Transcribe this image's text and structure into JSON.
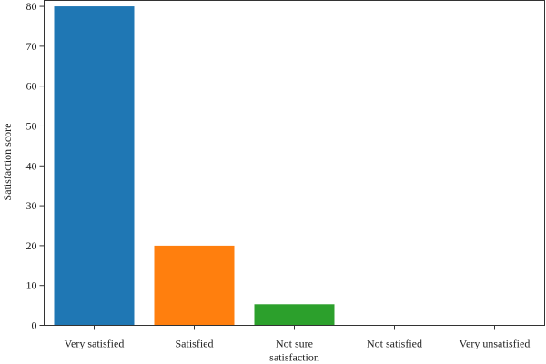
{
  "chart_data": {
    "type": "bar",
    "title": "",
    "xlabel": "",
    "ylabel": "Satisfaction score",
    "categories": [
      [
        "Very satisfied"
      ],
      [
        "Satisfied"
      ],
      [
        "Not sure",
        "satisfaction"
      ],
      [
        "Not satisfied"
      ],
      [
        "Very unsatisfied"
      ]
    ],
    "values": [
      80,
      20,
      5.3,
      0,
      0
    ],
    "colors": [
      "#1f77b4",
      "#ff7f0e",
      "#2ca02c",
      "#d62728",
      "#9467bd"
    ],
    "ylim": [
      0,
      81.5
    ],
    "yticks": [
      0,
      10,
      20,
      30,
      40,
      50,
      60,
      70,
      80
    ],
    "grid": false,
    "legend": false
  }
}
